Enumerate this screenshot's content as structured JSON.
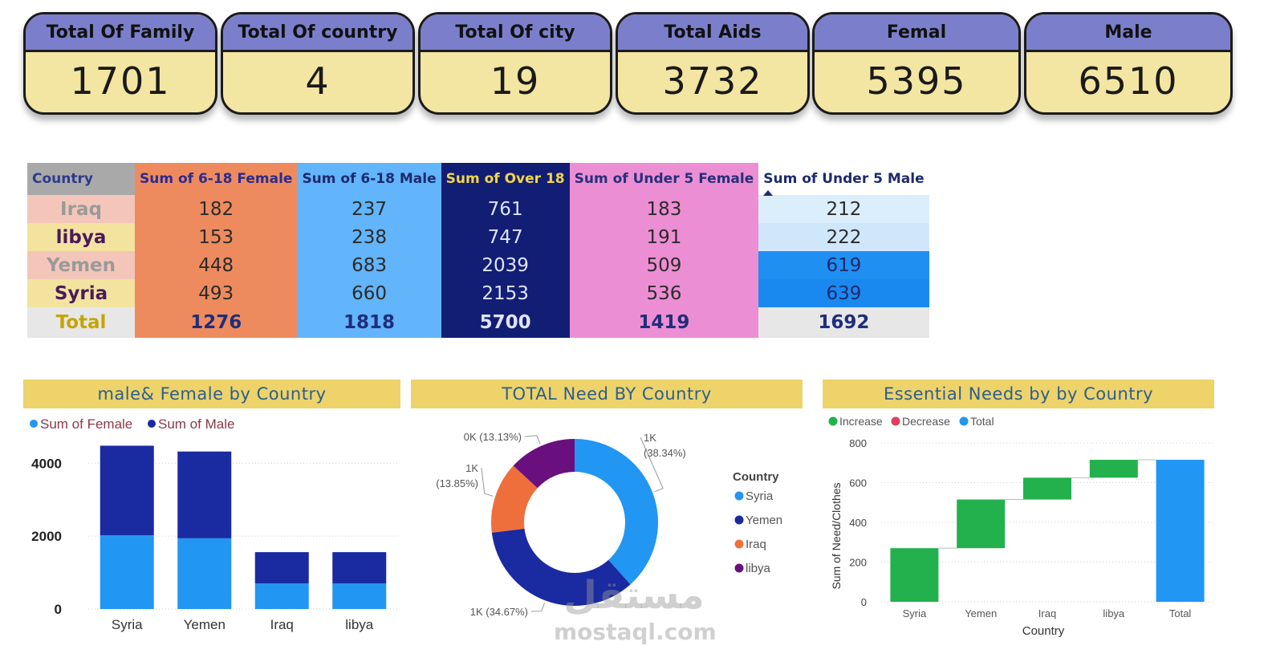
{
  "kpis": [
    {
      "label": "Total Of Family",
      "value": "1701"
    },
    {
      "label": "Total Of country",
      "value": "4"
    },
    {
      "label": "Total Of city",
      "value": "19"
    },
    {
      "label": "Total Aids",
      "value": "3732"
    },
    {
      "label": "Femal",
      "value": "5395"
    },
    {
      "label": "Male",
      "value": "6510"
    }
  ],
  "matrix": {
    "headers": [
      "Country",
      "Sum of 6-18 Female",
      "Sum of 6-18 Male",
      "Sum of Over 18",
      "Sum of Under 5 Female",
      "Sum of Under 5 Male"
    ],
    "rows": [
      {
        "country": "Iraq",
        "country_bg": "#f4c6b9",
        "country_color": "#9a9a9a",
        "under5_male_bg": "#dbeefc",
        "under5_male_color": "#2b2b2b",
        "values": [
          "182",
          "237",
          "761",
          "183",
          "212"
        ]
      },
      {
        "country": "libya",
        "country_bg": "#f3e39f",
        "country_color": "#4a1a5c",
        "under5_male_bg": "#d0e7fb",
        "under5_male_color": "#2b2b2b",
        "values": [
          "153",
          "238",
          "747",
          "191",
          "222"
        ]
      },
      {
        "country": "Yemen",
        "country_bg": "#f4c6b9",
        "country_color": "#9a9a9a",
        "under5_male_bg": "#1f8ff2",
        "under5_male_color": "#1d2a6e",
        "values": [
          "448",
          "683",
          "2039",
          "509",
          "619"
        ]
      },
      {
        "country": "Syria",
        "country_bg": "#f3e39f",
        "country_color": "#4a1a5c",
        "under5_male_bg": "#1a89ef",
        "under5_male_color": "#1d2a6e",
        "values": [
          "493",
          "660",
          "2153",
          "536",
          "639"
        ]
      }
    ],
    "total": {
      "label": "Total",
      "values": [
        "1276",
        "1818",
        "5700",
        "1419",
        "1692"
      ]
    }
  },
  "panels": {
    "bar_title": "male& Female by Country",
    "donut_title": "TOTAL Need BY Country",
    "waterfall_title": "Essential Needs by by Country"
  },
  "chart_data": [
    {
      "type": "bar",
      "stacked": true,
      "title": "male& Female by Country",
      "categories": [
        "Syria",
        "Yemen",
        "Iraq",
        "libya"
      ],
      "series": [
        {
          "name": "Sum of Female",
          "color": "#2196f3",
          "values": [
            2020,
            1940,
            700,
            700
          ]
        },
        {
          "name": "Sum of Male",
          "color": "#1a2aa0",
          "values": [
            2460,
            2380,
            860,
            860
          ]
        }
      ],
      "legend_colors": [
        "#2196f3",
        "#1a2aa0"
      ],
      "yticks": [
        "0",
        "2000",
        "4000"
      ],
      "ylim": [
        0,
        4600
      ],
      "legend_position": "top-left"
    },
    {
      "type": "pie",
      "donut": true,
      "title": "TOTAL Need BY Country",
      "legend_title": "Country",
      "slices": [
        {
          "label": "Syria",
          "value": 38.34,
          "color": "#2196f3",
          "annotation": [
            "1K",
            "(38.34%)"
          ]
        },
        {
          "label": "Yemen",
          "value": 34.67,
          "color": "#1a2aa0",
          "annotation": [
            "1K (34.67%)"
          ]
        },
        {
          "label": "Iraq",
          "value": 13.85,
          "color": "#ee6f3c",
          "annotation": [
            "1K",
            "(13.85%)"
          ]
        },
        {
          "label": "libya",
          "value": 13.13,
          "color": "#6a0f7e",
          "annotation": [
            "0K (13.13%)"
          ]
        }
      ],
      "legend_position": "right"
    },
    {
      "type": "bar",
      "waterfall": true,
      "title": "Essential Needs by by Country",
      "categories": [
        "Syria",
        "Yemen",
        "Iraq",
        "libya",
        "Total"
      ],
      "increments": [
        270,
        245,
        110,
        90
      ],
      "total": 715,
      "xlabel": "Country",
      "ylabel": "Sum of Need/Clothes",
      "yticks": [
        "0",
        "200",
        "400",
        "600",
        "800"
      ],
      "ylim": [
        0,
        800
      ],
      "legend": [
        {
          "label": "Increase",
          "color": "#22b14c"
        },
        {
          "label": "Decrease",
          "color": "#e0405a"
        },
        {
          "label": "Total",
          "color": "#2196f3"
        }
      ],
      "legend_position": "top-left"
    }
  ],
  "watermark": {
    "arabic": "مستقل",
    "latin": "mostaql.com"
  }
}
